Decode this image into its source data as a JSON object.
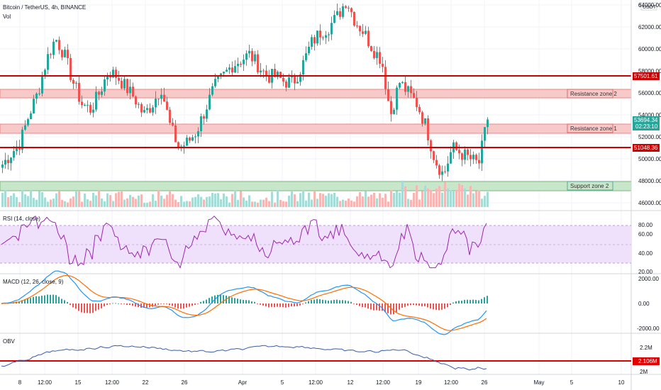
{
  "header": {
    "symbol": "Bitcoin / TetherUS, 4h, BINANCE",
    "volume_label": "Vol",
    "currency": "USDT"
  },
  "colors": {
    "up": "#26a69a",
    "down": "#ef5350",
    "grid": "#f0f3fa",
    "red_line": "#cc0000",
    "resistance_zone": "#f8c9c9",
    "support_zone": "#c8e6c9",
    "rsi_line": "#9c27b0",
    "rsi_band": "#efe0fb",
    "macd_line": "#2196f3",
    "signal_line": "#ff6d00",
    "obv_line": "#3a5ca8",
    "price_label": "#26a69a"
  },
  "price_axis": {
    "ticks": [
      "64000.00",
      "62000.00",
      "60000.00",
      "58000.00",
      "56000.00",
      "54000.00",
      "52000.00",
      "50000.00",
      "48000.00",
      "46000.00"
    ],
    "top_partial": "6",
    "current_price": "53694.34",
    "countdown": "02:23:10",
    "level_high": "57501.61",
    "level_low": "51048.36"
  },
  "zones": {
    "resistance_2": "Resistance zone 2",
    "resistance_1": "Resistance zone 1",
    "support_2": "Support zone 2"
  },
  "rsi": {
    "label": "RSI (14, close)",
    "ticks": [
      "80.00",
      "60.00",
      "40.00",
      "20.00"
    ]
  },
  "macd": {
    "label": "MACD (12, 26, close, 9)",
    "ticks": [
      "2000.00",
      "0.00",
      "-2000.00"
    ]
  },
  "obv": {
    "label": "OBV",
    "ticks": [
      "2.2M",
      "2M"
    ],
    "level": "2.106M"
  },
  "time_axis": [
    "8",
    "12:00",
    "15",
    "12:00",
    "22",
    "26",
    "Apr",
    "5",
    "12:00",
    "12",
    "12:00",
    "19",
    "12:00",
    "26",
    "May",
    "5",
    "10"
  ],
  "chart_data": {
    "type": "candlestick",
    "title": "Bitcoin / TetherUS, 4h, BINANCE",
    "ylim": [
      45000,
      65000
    ],
    "current_price": 53694.34,
    "horizontal_levels": [
      57501.61,
      51048.36
    ],
    "zones": [
      {
        "name": "Resistance zone 2",
        "from": 55600,
        "to": 56500
      },
      {
        "name": "Resistance zone 1",
        "from": 52800,
        "to": 53600
      },
      {
        "name": "Support zone 2",
        "from": 46900,
        "to": 47900
      }
    ],
    "close_path": [
      49500,
      50500,
      51500,
      54000,
      56000,
      59000,
      61000,
      59500,
      57000,
      55000,
      54500,
      56000,
      58000,
      57500,
      56500,
      55500,
      54000,
      55000,
      56500,
      53000,
      51000,
      51500,
      52500,
      54500,
      56500,
      57500,
      58500,
      59000,
      59500,
      58500,
      57500,
      57500,
      57000,
      57000,
      58500,
      60500,
      61500,
      62000,
      63000,
      64500,
      62500,
      61500,
      60000,
      59000,
      54000,
      57000,
      56000,
      55000,
      53000,
      50000,
      48500,
      51000,
      50500,
      50000,
      49500,
      53700
    ]
  }
}
